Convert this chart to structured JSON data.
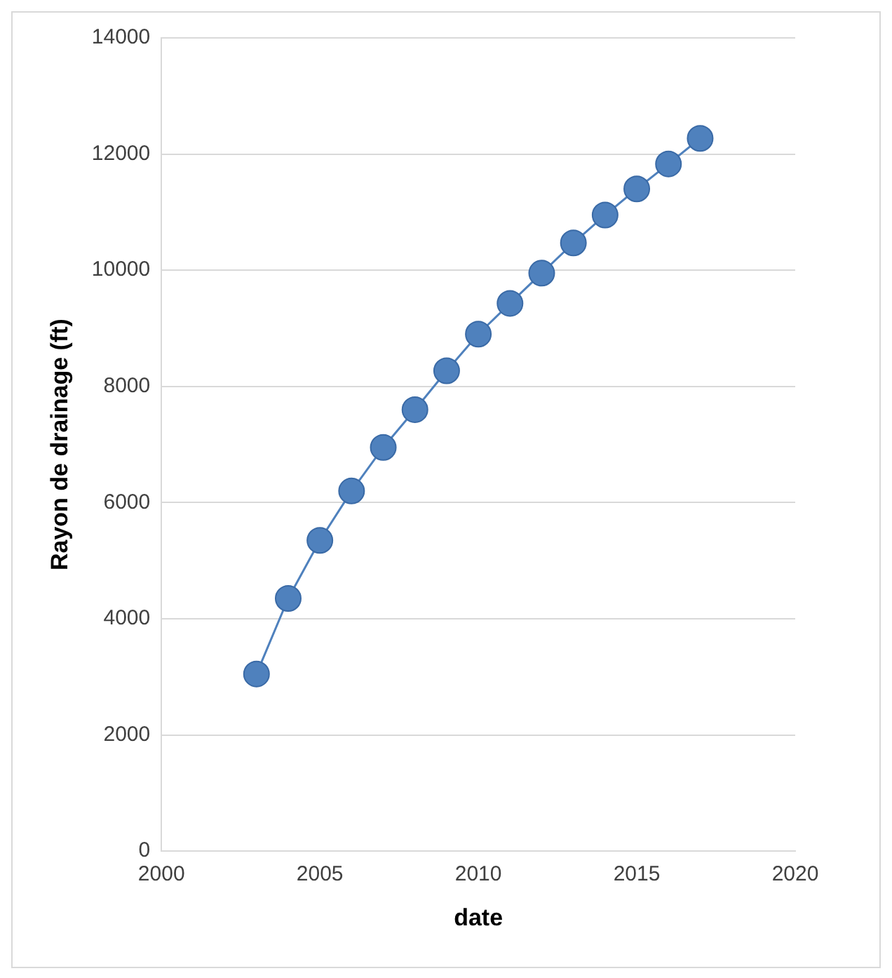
{
  "chart_data": {
    "type": "line",
    "xlabel": "date",
    "ylabel": "Rayon de drainage (ft)",
    "x": [
      2003,
      2004,
      2005,
      2006,
      2007,
      2008,
      2009,
      2010,
      2011,
      2012,
      2013,
      2014,
      2015,
      2016,
      2017
    ],
    "series": [
      {
        "color": "#4f81bd",
        "values": [
          3050,
          4350,
          5350,
          6200,
          6950,
          7600,
          8270,
          8900,
          9430,
          9950,
          10470,
          10950,
          11400,
          11830,
          12270
        ]
      }
    ],
    "xlim": [
      2000,
      2020
    ],
    "xticks": [
      2000,
      2005,
      2010,
      2015,
      2020
    ],
    "ylim": [
      0,
      14000
    ],
    "yticks": [
      0,
      2000,
      4000,
      6000,
      8000,
      10000,
      12000,
      14000
    ],
    "grid": "y",
    "legend": false,
    "marker": "circle",
    "line_style": "solid"
  }
}
